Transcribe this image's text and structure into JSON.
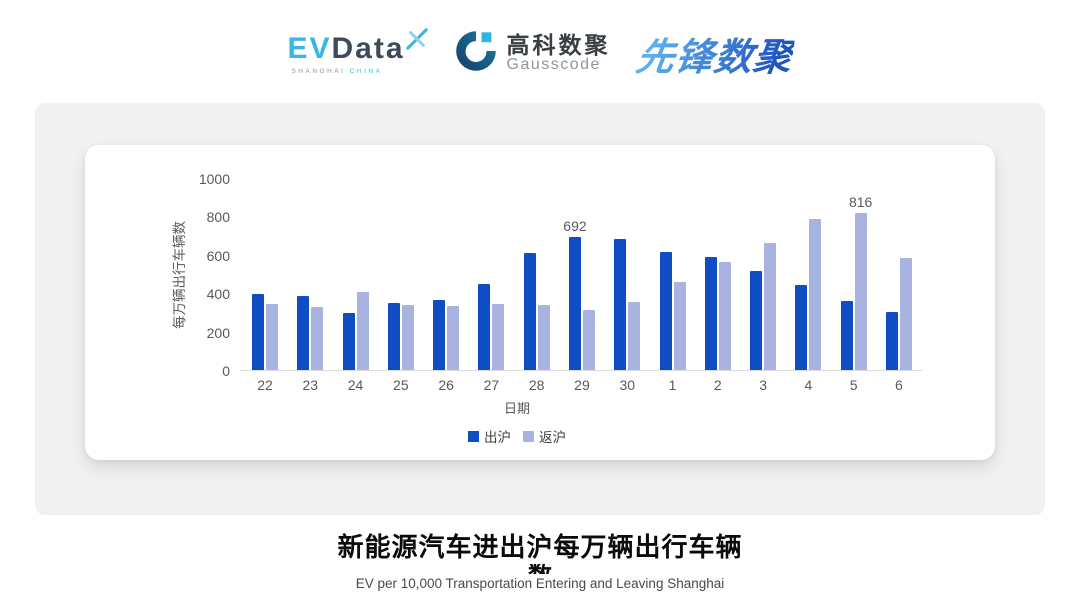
{
  "page": {
    "background": "#ffffff",
    "panel_bg": "#f1f1f2",
    "card_bg": "#ffffff"
  },
  "logos": {
    "evdata": {
      "ev": "EV",
      "data": "Data",
      "sub_left": "SHANGHAI",
      "sub_right": "CHINA",
      "cyan": "#38b6e8",
      "dark": "#3e4a5a"
    },
    "gausscode": {
      "cn": "高科数聚",
      "en": "Gausscode",
      "mark_color": "#15507a",
      "mark_accent": "#2fb4e8"
    },
    "xianfeng": {
      "text": "先锋数聚",
      "color_from": "#5fb0ec",
      "color_to": "#1f55c0"
    }
  },
  "chart_data": {
    "type": "bar",
    "title": "",
    "categories": [
      "22",
      "23",
      "24",
      "25",
      "26",
      "27",
      "28",
      "29",
      "30",
      "1",
      "2",
      "3",
      "4",
      "5",
      "6"
    ],
    "series": [
      {
        "name": "出沪",
        "color": "#0e4ec2",
        "values": [
          395,
          388,
          296,
          349,
          364,
          448,
          610,
          692,
          682,
          614,
          590,
          517,
          444,
          361,
          302
        ]
      },
      {
        "name": "返沪",
        "color": "#a9b3df",
        "values": [
          342,
          326,
          404,
          339,
          332,
          345,
          338,
          312,
          355,
          457,
          565,
          662,
          786,
          816,
          584
        ]
      }
    ],
    "annotations": [
      {
        "series_index": 0,
        "category_index": 7,
        "text": "692"
      },
      {
        "series_index": 1,
        "category_index": 13,
        "text": "816"
      }
    ],
    "xlabel": "日期",
    "ylabel": "每万辆出行车辆数",
    "ylim": [
      0,
      1000
    ],
    "y_ticks": [
      0,
      200,
      400,
      600,
      800,
      1000
    ],
    "grid": false,
    "legend_position": "bottom",
    "axis_text_color": "#595959",
    "axis_line_color": "#dcdcdc"
  },
  "footer": {
    "title_line1": "新能源汽车进出沪每万辆出行车辆",
    "title_line2": "数",
    "subtitle": "EV per 10,000 Transportation Entering and Leaving Shanghai"
  }
}
